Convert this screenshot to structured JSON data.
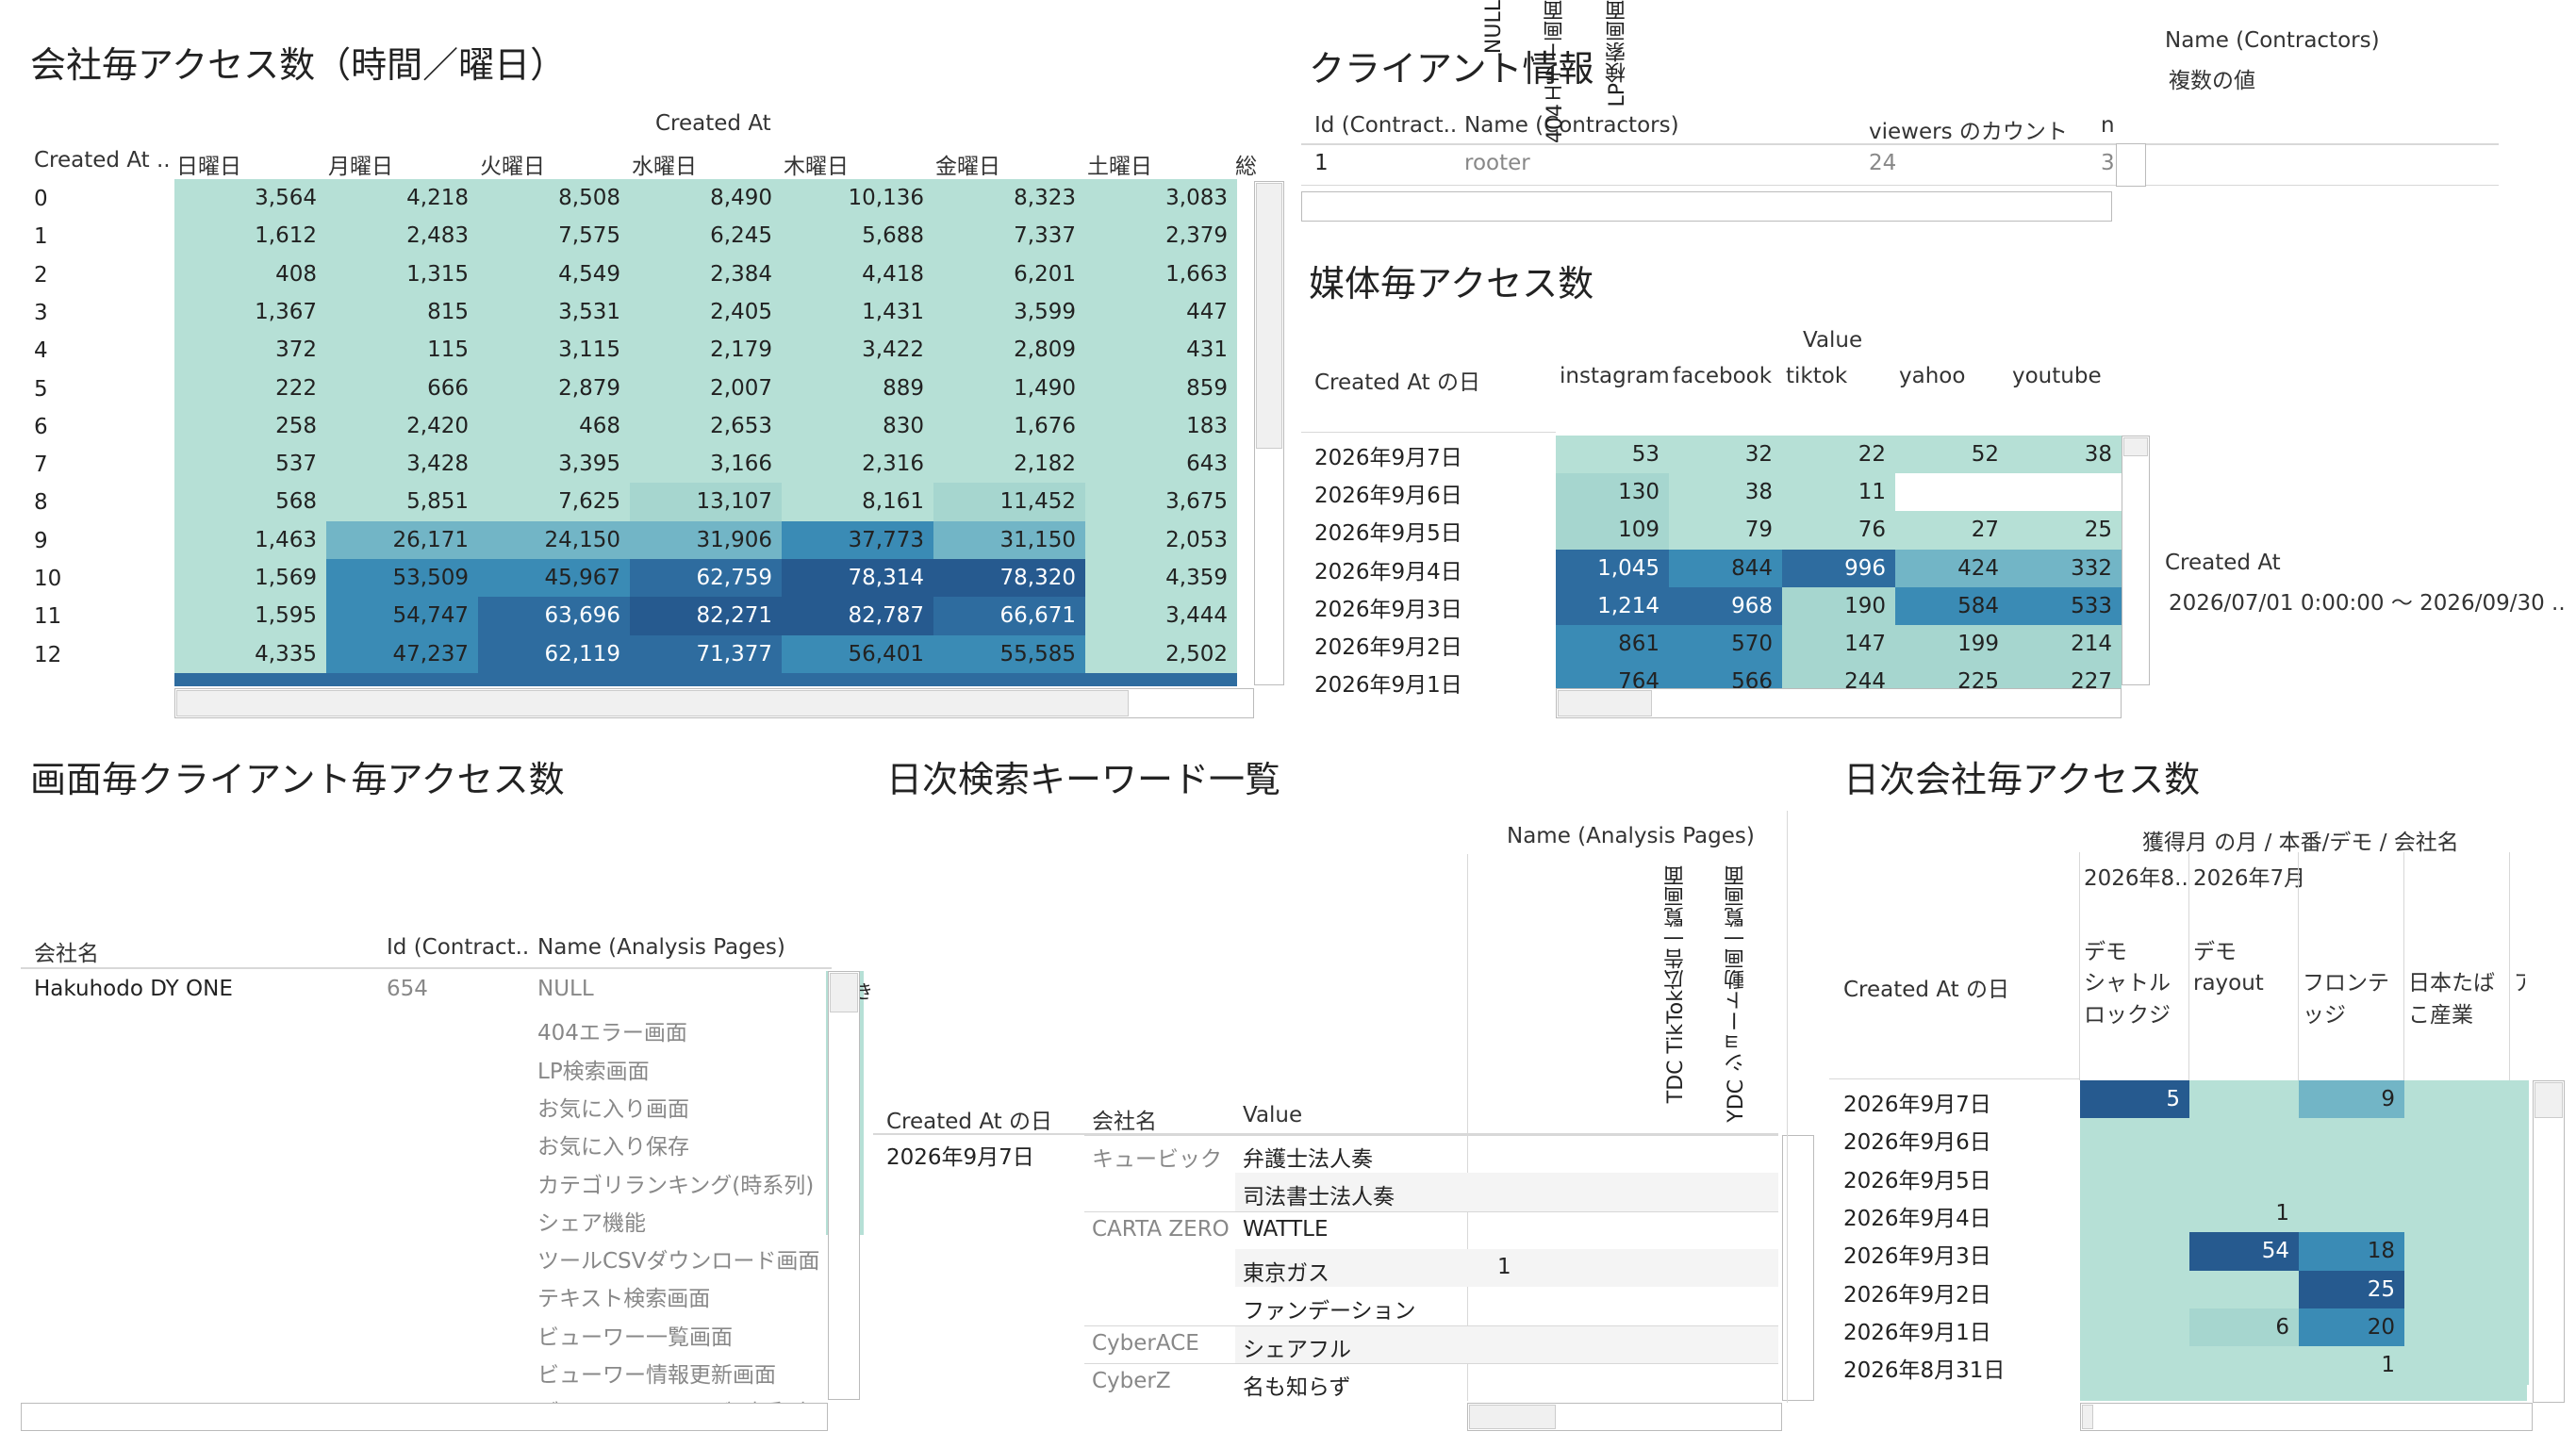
{
  "colors": {
    "c1": "#b6e0d6",
    "c2": "#a6d6cf",
    "c3": "#72b5c6",
    "c4": "#3a8bb5",
    "c5": "#2e6c9f",
    "c6": "#265a8f"
  },
  "access_by_hour": {
    "title": "会社毎アクセス数（時間／曜日）",
    "col_group": "Created At",
    "row_header": "Created At ..",
    "days": [
      "日曜日",
      "月曜日",
      "火曜日",
      "水曜日",
      "木曜日",
      "金曜日",
      "土曜日"
    ],
    "total_clip": "総",
    "rows": [
      {
        "h": "0",
        "v": [
          "3,564",
          "4,218",
          "8,508",
          "8,490",
          "10,136",
          "8,323",
          "3,083"
        ],
        "c": [
          1,
          1,
          1,
          1,
          1,
          1,
          1
        ]
      },
      {
        "h": "1",
        "v": [
          "1,612",
          "2,483",
          "7,575",
          "6,245",
          "5,688",
          "7,337",
          "2,379"
        ],
        "c": [
          1,
          1,
          1,
          1,
          1,
          1,
          1
        ]
      },
      {
        "h": "2",
        "v": [
          "408",
          "1,315",
          "4,549",
          "2,384",
          "4,418",
          "6,201",
          "1,663"
        ],
        "c": [
          1,
          1,
          1,
          1,
          1,
          1,
          1
        ]
      },
      {
        "h": "3",
        "v": [
          "1,367",
          "815",
          "3,531",
          "2,405",
          "1,431",
          "3,599",
          "447"
        ],
        "c": [
          1,
          1,
          1,
          1,
          1,
          1,
          1
        ]
      },
      {
        "h": "4",
        "v": [
          "372",
          "115",
          "3,115",
          "2,179",
          "3,422",
          "2,809",
          "431"
        ],
        "c": [
          1,
          1,
          1,
          1,
          1,
          1,
          1
        ]
      },
      {
        "h": "5",
        "v": [
          "222",
          "666",
          "2,879",
          "2,007",
          "889",
          "1,490",
          "859"
        ],
        "c": [
          1,
          1,
          1,
          1,
          1,
          1,
          1
        ]
      },
      {
        "h": "6",
        "v": [
          "258",
          "2,420",
          "468",
          "2,653",
          "830",
          "1,676",
          "183"
        ],
        "c": [
          1,
          1,
          1,
          1,
          1,
          1,
          1
        ]
      },
      {
        "h": "7",
        "v": [
          "537",
          "3,428",
          "3,395",
          "3,166",
          "2,316",
          "2,182",
          "643"
        ],
        "c": [
          1,
          1,
          1,
          1,
          1,
          1,
          1
        ]
      },
      {
        "h": "8",
        "v": [
          "568",
          "5,851",
          "7,625",
          "13,107",
          "8,161",
          "11,452",
          "3,675"
        ],
        "c": [
          1,
          1,
          1,
          2,
          1,
          2,
          1
        ]
      },
      {
        "h": "9",
        "v": [
          "1,463",
          "26,171",
          "24,150",
          "31,906",
          "37,773",
          "31,150",
          "2,053"
        ],
        "c": [
          1,
          3,
          3,
          3,
          4,
          3,
          1
        ]
      },
      {
        "h": "10",
        "v": [
          "1,569",
          "53,509",
          "45,967",
          "62,759",
          "78,314",
          "78,320",
          "4,359"
        ],
        "c": [
          1,
          4,
          4,
          5,
          6,
          6,
          1
        ]
      },
      {
        "h": "11",
        "v": [
          "1,595",
          "54,747",
          "63,696",
          "82,271",
          "82,787",
          "66,671",
          "3,444"
        ],
        "c": [
          1,
          4,
          5,
          6,
          6,
          5,
          1
        ]
      },
      {
        "h": "12",
        "v": [
          "4,335",
          "47,237",
          "62,119",
          "71,377",
          "56,401",
          "55,585",
          "2,502"
        ],
        "c": [
          1,
          4,
          5,
          5,
          4,
          4,
          1
        ]
      }
    ]
  },
  "client_info": {
    "title": "クライアント情報",
    "headers": [
      "Id (Contract..",
      "Name (Contractors)",
      "viewers のカウント",
      "n"
    ],
    "row": {
      "id": "1",
      "name": "rooter",
      "count": "24",
      "clip": "3"
    }
  },
  "filter_name": {
    "label": "Name (Contractors)",
    "value": "複数の値"
  },
  "filter_created": {
    "label": "Created At",
    "value": "2026/07/01 0:00:00 〜 2026/09/30 .."
  },
  "media_access": {
    "title": "媒体毎アクセス数",
    "value_label": "Value",
    "row_header": "Created At の日",
    "media": [
      "instagram",
      "facebook",
      "tiktok",
      "yahoo",
      "youtube"
    ],
    "rows": [
      {
        "d": "2026年9月7日",
        "v": [
          "53",
          "32",
          "22",
          "52",
          "38"
        ],
        "c": [
          1,
          1,
          1,
          1,
          1
        ]
      },
      {
        "d": "2026年9月6日",
        "v": [
          "130",
          "38",
          "11",
          "",
          ""
        ],
        "c": [
          2,
          1,
          1,
          0,
          0
        ]
      },
      {
        "d": "2026年9月5日",
        "v": [
          "109",
          "79",
          "76",
          "27",
          "25"
        ],
        "c": [
          2,
          1,
          1,
          1,
          1
        ]
      },
      {
        "d": "2026年9月4日",
        "v": [
          "1,045",
          "844",
          "996",
          "424",
          "332"
        ],
        "c": [
          5,
          4,
          5,
          3,
          3
        ]
      },
      {
        "d": "2026年9月3日",
        "v": [
          "1,214",
          "968",
          "190",
          "584",
          "533"
        ],
        "c": [
          5,
          5,
          2,
          4,
          4
        ]
      },
      {
        "d": "2026年9月2日",
        "v": [
          "861",
          "570",
          "147",
          "199",
          "214"
        ],
        "c": [
          4,
          4,
          2,
          2,
          2
        ]
      },
      {
        "d": "2026年9月1日",
        "v": [
          "764",
          "566",
          "244",
          "225",
          "227"
        ],
        "c": [
          4,
          4,
          2,
          2,
          2
        ]
      }
    ]
  },
  "screen_client": {
    "title": "画面毎クライアント毎アクセス数",
    "headers": [
      "会社名",
      "Id (Contract..",
      "Name (Analysis Pages)"
    ],
    "company": "Hakuhodo DY ONE",
    "id": "654",
    "pages": [
      "NULL",
      "404エラー画面",
      "LP検索画面",
      "お気に入り画面",
      "お気に入り保存",
      "カテゴリランキング(時系列)",
      "シェア機能",
      "ツールCSVダウンロード画面",
      "テキスト検索画面",
      "ビューワー一覧画面",
      "ビューワー情報更新画面",
      "ブランドランキング(時系列)"
    ],
    "clip_right": "き"
  },
  "keywords": {
    "title": "日次検索キーワード一覧",
    "pages_label": "Name (Analysis Pages)",
    "headers": [
      "Created At の日",
      "会社名",
      "Value"
    ],
    "page_cols": [
      "NULL",
      "404エラー画面",
      "LP検索画面",
      "TDC TikTok広告一覧画面",
      "YDC ショート動画一覧画面"
    ],
    "date": "2026年9月7日",
    "rows": [
      {
        "company": "キュービック",
        "value": "弁護士法人奏",
        "n": ""
      },
      {
        "company": "",
        "value": "司法書士法人奏",
        "n": ""
      },
      {
        "company": "CARTA ZERO",
        "value": "WATTLE",
        "n": ""
      },
      {
        "company": "",
        "value": "東京ガス",
        "n": "1"
      },
      {
        "company": "",
        "value": "ファンデーション",
        "n": ""
      },
      {
        "company": "CyberACE",
        "value": "シェアフル",
        "n": ""
      },
      {
        "company": "CyberZ",
        "value": "名も知らず",
        "n": ""
      }
    ]
  },
  "daily_company": {
    "title": "日次会社毎アクセス数",
    "group_label": "獲得月 の月 / 本番/デモ / 会社名",
    "months": [
      "2026年8..",
      "2026年7月"
    ],
    "row_header": "Created At の日",
    "cols": [
      {
        "env": "デモ",
        "name": "シャトルロックジャパン"
      },
      {
        "env": "デモ",
        "name": "rayout"
      },
      {
        "env": "",
        "name": "フロンテッジ"
      },
      {
        "env": "",
        "name": "日本たばこ産業"
      },
      {
        "env": "",
        "name": "ア"
      }
    ],
    "rows": [
      {
        "d": "2026年9月7日",
        "v": [
          "5",
          "",
          "9",
          "",
          ""
        ],
        "c": [
          6,
          1,
          3,
          1,
          1
        ]
      },
      {
        "d": "2026年9月6日",
        "v": [
          "",
          "",
          "",
          "",
          ""
        ],
        "c": [
          1,
          1,
          1,
          1,
          1
        ]
      },
      {
        "d": "2026年9月5日",
        "v": [
          "",
          "",
          "",
          "",
          ""
        ],
        "c": [
          1,
          1,
          1,
          1,
          1
        ]
      },
      {
        "d": "2026年9月4日",
        "v": [
          "",
          "1",
          "",
          "",
          ""
        ],
        "c": [
          1,
          1,
          1,
          1,
          1
        ]
      },
      {
        "d": "2026年9月3日",
        "v": [
          "",
          "54",
          "18",
          "",
          ""
        ],
        "c": [
          1,
          6,
          4,
          1,
          1
        ]
      },
      {
        "d": "2026年9月2日",
        "v": [
          "",
          "",
          "25",
          "",
          ""
        ],
        "c": [
          1,
          1,
          6,
          1,
          1
        ]
      },
      {
        "d": "2026年9月1日",
        "v": [
          "",
          "6",
          "20",
          "",
          ""
        ],
        "c": [
          1,
          2,
          4,
          1,
          1
        ]
      },
      {
        "d": "2026年8月31日",
        "v": [
          "",
          "",
          "1",
          "",
          ""
        ],
        "c": [
          1,
          1,
          1,
          1,
          1
        ]
      }
    ]
  }
}
